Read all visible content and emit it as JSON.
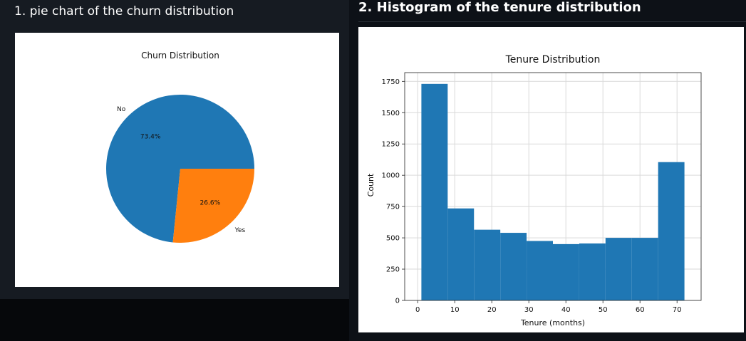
{
  "headings": {
    "pie_section": "1. pie chart of the churn distribution",
    "hist_section": "2. Histogram of the tenure distribution"
  },
  "chart_data": [
    {
      "type": "pie",
      "title": "Churn Distribution",
      "labels": [
        "No",
        "Yes"
      ],
      "values": [
        73.4,
        26.6
      ],
      "value_labels": [
        "73.4%",
        "26.6%"
      ],
      "colors": [
        "#1f77b4",
        "#ff7f0e"
      ],
      "start_angle_deg": 0,
      "direction": "counterclockwise"
    },
    {
      "type": "bar",
      "subtype": "histogram",
      "title": "Tenure Distribution",
      "xlabel": "Tenure (months)",
      "ylabel": "Count",
      "bin_edges": [
        1,
        8.1,
        15.2,
        22.3,
        29.4,
        36.5,
        43.6,
        50.7,
        57.8,
        64.9,
        72
      ],
      "values": [
        1730,
        735,
        565,
        540,
        475,
        450,
        455,
        500,
        500,
        1105
      ],
      "color": "#1f77b4",
      "xlim": [
        -3.5,
        76.5
      ],
      "ylim": [
        0,
        1820
      ],
      "xticks": [
        0,
        10,
        20,
        30,
        40,
        50,
        60,
        70
      ],
      "yticks": [
        0,
        250,
        500,
        750,
        1000,
        1250,
        1500,
        1750
      ],
      "grid": true
    }
  ]
}
